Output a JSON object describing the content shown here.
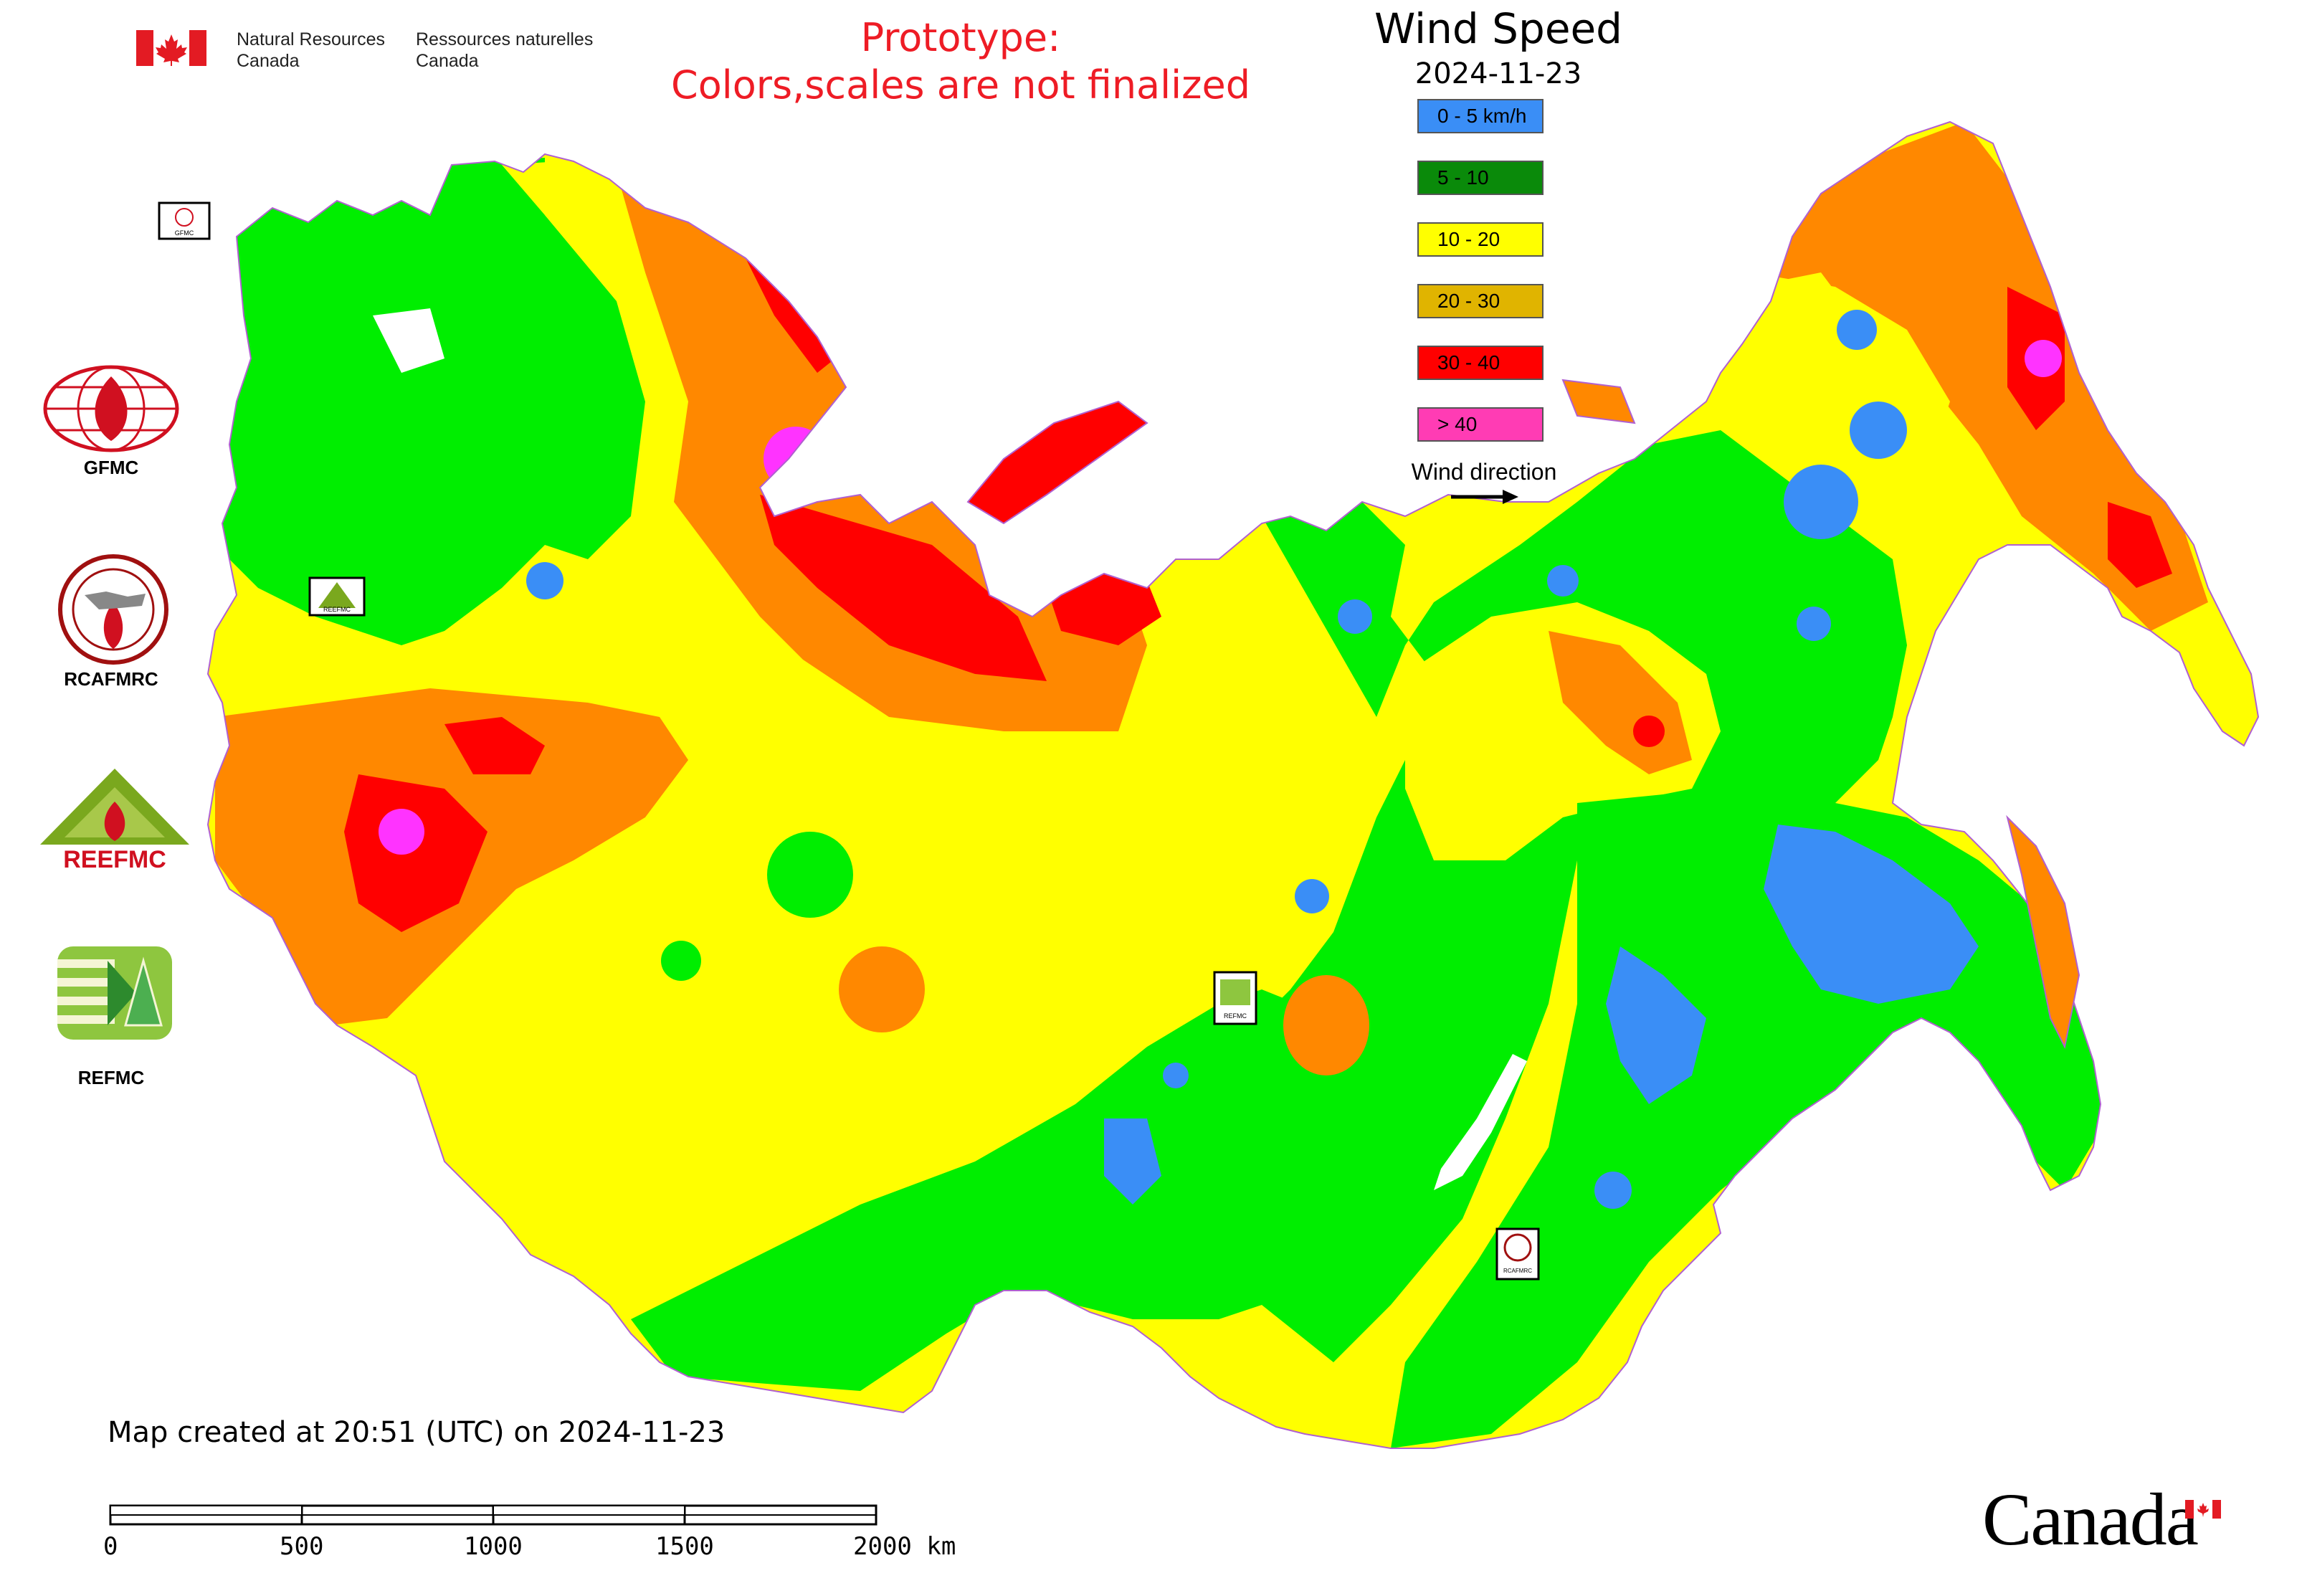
{
  "header": {
    "agency_en_line1": "Natural Resources",
    "agency_en_line2": "Canada",
    "agency_fr_line1": "Ressources naturelles",
    "agency_fr_line2": "Canada",
    "prototype_line1": "Prototype:",
    "prototype_line2": "Colors,scales are not finalized"
  },
  "legend": {
    "title": "Wind Speed",
    "date": "2024-11-23",
    "classes": [
      {
        "label": "0 - 5 km/h",
        "color": "#3a8ef6"
      },
      {
        "label": "5 - 10",
        "color": "#0a8a0a"
      },
      {
        "label": "10 - 20",
        "color": "#ffff00"
      },
      {
        "label": "20 - 30",
        "color": "#e0b400"
      },
      {
        "label": "30 - 40",
        "color": "#ff0000"
      },
      {
        "label": "> 40",
        "color": "#ff3cb4"
      }
    ],
    "wind_direction_label": "Wind direction"
  },
  "map_colors": {
    "lt5": "#3a8ef6",
    "5_10": "#00ee00",
    "10_20": "#ffff00",
    "20_30": "#ff8800",
    "30_40": "#ff0000",
    "gt40": "#ff33ff",
    "water": "#ffffff",
    "border": "#b060d0"
  },
  "logos": {
    "gfmc": "GFMC",
    "rcafmrc": "RCAFMRC",
    "reefmc": "REEFMC",
    "refmc": "REFMC",
    "gfmc_tiny": "GFMC",
    "reefmc_tiny": "REEFMC",
    "refmc_tiny": "REFMC",
    "rcafmrc_tiny": "RCAFMRC"
  },
  "footer": {
    "created": "Map created at 20:51 (UTC) on 2024-11-23",
    "scale_ticks": [
      "0",
      "500",
      "1000",
      "1500",
      "2000 km"
    ],
    "wordmark": "Canada"
  }
}
